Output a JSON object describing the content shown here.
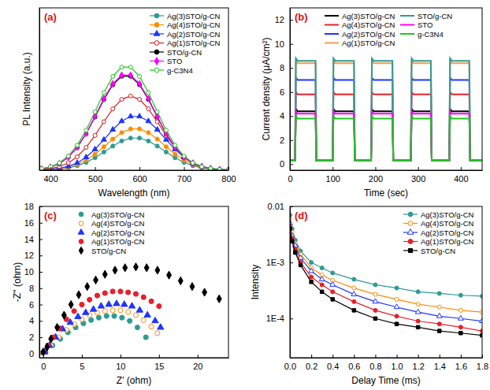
{
  "chart_data": [
    {
      "type": "line",
      "title": "(a)",
      "x_label": "Wavelength (nm)",
      "y_label": "PL Intensity (a.u.)",
      "xlim": [
        375,
        800
      ],
      "ylim": [
        0,
        140
      ],
      "xticks": [
        400,
        500,
        600,
        700,
        800
      ],
      "tick_labels": "x",
      "legend": "top-right",
      "x": [
        380,
        400,
        420,
        440,
        460,
        480,
        500,
        520,
        540,
        560,
        580,
        600,
        620,
        640,
        660,
        680,
        700,
        720,
        740,
        760,
        780,
        800
      ],
      "series": [
        {
          "name": "Ag(3)STO/g-CN",
          "color": "#2e9c94",
          "marker": "circle",
          "values": [
            0.2,
            0.4,
            0.9,
            2.0,
            3.8,
            6.7,
            10.7,
            15.7,
            20.8,
            25.2,
            27.7,
            27.7,
            25.2,
            20.8,
            15.7,
            10.7,
            6.7,
            3.8,
            2.0,
            0.9,
            0.4,
            0.2
          ]
        },
        {
          "name": "Ag(4)STO/g-CN",
          "color": "#ff8c00",
          "marker": "circle",
          "values": [
            0.2,
            0.5,
            1.2,
            2.5,
            4.9,
            8.6,
            13.8,
            20.2,
            26.8,
            32.4,
            35.6,
            35.6,
            32.4,
            26.8,
            20.2,
            13.8,
            8.6,
            4.9,
            2.5,
            1.2,
            0.5,
            0.2
          ]
        },
        {
          "name": "Ag(2)STO/g-CN",
          "color": "#1f35ff",
          "marker": "triangle",
          "values": [
            0.3,
            0.7,
            1.6,
            3.3,
            6.3,
            11.2,
            18.0,
            26.3,
            35.0,
            42.3,
            46.4,
            46.4,
            42.3,
            35.0,
            26.3,
            18.0,
            11.2,
            6.3,
            3.3,
            1.6,
            0.7,
            0.3
          ]
        },
        {
          "name": "Ag(1)STO/g-CN",
          "color": "#d42020",
          "marker": "open-circle",
          "values": [
            0.6,
            1.4,
            3.1,
            6.3,
            11.6,
            19.6,
            30.0,
            41.8,
            52.9,
            61.1,
            64.0,
            61.1,
            52.9,
            41.8,
            30.0,
            19.6,
            11.6,
            6.3,
            3.1,
            1.4,
            0.6,
            0.2
          ]
        },
        {
          "name": "STO/g-CN",
          "color": "#000000",
          "marker": "circle",
          "values": [
            1.1,
            2.7,
            5.7,
            11.1,
            19.6,
            31.4,
            45.9,
            61.0,
            73.7,
            81.0,
            81.0,
            73.7,
            61.0,
            45.9,
            31.4,
            19.6,
            11.1,
            5.7,
            2.7,
            1.1,
            0.5,
            0.2
          ]
        },
        {
          "name": "STO",
          "color": "#ff00ff",
          "marker": "diamond",
          "values": [
            1.2,
            2.7,
            5.8,
            11.2,
            19.8,
            31.8,
            46.5,
            61.8,
            74.6,
            82.0,
            82.0,
            74.6,
            61.8,
            46.5,
            31.8,
            19.8,
            11.2,
            5.8,
            2.7,
            1.2,
            0.5,
            0.2
          ]
        },
        {
          "name": "g-C3N4",
          "color": "#22c422",
          "marker": "open-circle",
          "values": [
            1.3,
            3.0,
            6.3,
            12.2,
            21.5,
            34.5,
            50.4,
            67.0,
            80.9,
            88.9,
            88.9,
            80.9,
            67.0,
            50.4,
            34.5,
            21.5,
            12.2,
            6.3,
            3.0,
            1.3,
            0.5,
            0.2
          ]
        }
      ]
    },
    {
      "type": "line",
      "title": "(b)",
      "x_label": "Time (sec)",
      "y_label": "Current density (μA/cm²)",
      "xlim": [
        0,
        450
      ],
      "ylim": [
        -0.5,
        13
      ],
      "xticks": [
        0,
        100,
        200,
        300,
        400
      ],
      "yticks": [
        0,
        2,
        4,
        6,
        8,
        10,
        12
      ],
      "legend": "top",
      "x": [
        0,
        12,
        14,
        18,
        60,
        62,
        100,
        102,
        106,
        150,
        152,
        190,
        192,
        196,
        240,
        242,
        283,
        285,
        289,
        330,
        332,
        373,
        375,
        379,
        420,
        422,
        450
      ],
      "series": [
        {
          "name": "Ag(3)STO/g-CN",
          "color": "#000000",
          "values": [
            0.3,
            0.3,
            4.6,
            4.4,
            4.4,
            0.3,
            0.3,
            4.6,
            4.4,
            4.4,
            0.3,
            0.3,
            4.6,
            4.4,
            4.4,
            0.3,
            0.3,
            4.6,
            4.4,
            4.4,
            0.3,
            0.3,
            4.6,
            4.4,
            4.4,
            0.3,
            0.3
          ]
        },
        {
          "name": "Ag(4)STO/g-CN",
          "color": "#e8202a",
          "values": [
            0.3,
            0.3,
            6.0,
            5.8,
            5.8,
            0.3,
            0.3,
            6.0,
            5.8,
            5.8,
            0.3,
            0.3,
            6.0,
            5.8,
            5.8,
            0.3,
            0.3,
            6.0,
            5.8,
            5.8,
            0.3,
            0.3,
            6.0,
            5.8,
            5.8,
            0.3,
            0.3
          ]
        },
        {
          "name": "Ag(2)STO/g-CN",
          "color": "#1f35ff",
          "values": [
            0.3,
            0.3,
            7.2,
            7.0,
            7.0,
            0.3,
            0.3,
            7.2,
            7.0,
            7.0,
            0.3,
            0.3,
            7.2,
            7.0,
            7.0,
            0.3,
            0.3,
            7.2,
            7.0,
            7.0,
            0.3,
            0.3,
            7.2,
            7.0,
            7.0,
            0.3,
            0.3
          ]
        },
        {
          "name": "Ag(1)STO/g-CN",
          "color": "#f0a050",
          "values": [
            0.3,
            0.3,
            8.6,
            8.4,
            8.4,
            0.3,
            0.3,
            8.6,
            8.4,
            8.4,
            0.3,
            0.3,
            8.6,
            8.4,
            8.4,
            0.3,
            0.3,
            8.6,
            8.4,
            8.4,
            0.3,
            0.3,
            8.6,
            8.4,
            8.4,
            0.3,
            0.3
          ]
        },
        {
          "name": "STO/g-CN",
          "color": "#2e9c94",
          "values": [
            0.3,
            0.3,
            8.8,
            8.6,
            8.6,
            0.3,
            0.3,
            8.8,
            8.6,
            8.6,
            0.3,
            0.3,
            8.8,
            8.6,
            8.6,
            0.3,
            0.3,
            8.8,
            8.6,
            8.6,
            0.3,
            0.3,
            8.8,
            8.6,
            8.6,
            0.3,
            0.3
          ]
        },
        {
          "name": "STO",
          "color": "#ff00ff",
          "values": [
            0.3,
            0.3,
            4.4,
            4.2,
            4.2,
            0.3,
            0.3,
            4.4,
            4.2,
            4.2,
            0.3,
            0.3,
            4.4,
            4.2,
            4.2,
            0.3,
            0.3,
            4.4,
            4.2,
            4.2,
            0.3,
            0.3,
            4.4,
            4.2,
            4.2,
            0.3,
            0.3
          ]
        },
        {
          "name": "g-C3N4",
          "color": "#22c422",
          "values": [
            0.3,
            0.3,
            4.0,
            3.8,
            3.8,
            0.3,
            0.3,
            4.0,
            3.8,
            3.8,
            0.3,
            0.3,
            4.0,
            3.8,
            3.8,
            0.3,
            0.3,
            4.0,
            3.8,
            3.8,
            0.3,
            0.3,
            4.0,
            3.8,
            3.8,
            0.3,
            0.3
          ]
        }
      ]
    },
    {
      "type": "scatter",
      "title": "(c)",
      "x_label": "Z' (ohm)",
      "y_label": "-Z'' (ohm)",
      "xlim": [
        -0.5,
        24
      ],
      "ylim": [
        -0.5,
        18
      ],
      "xticks": [
        0,
        5,
        10,
        15,
        20
      ],
      "yticks": [
        0,
        2,
        4,
        6,
        8,
        10,
        12,
        14,
        16,
        18
      ],
      "legend": "top-left",
      "series": [
        {
          "name": "Ag(3)STO/g-CN",
          "color": "#2e9c94",
          "marker": "circle",
          "x": [
            0.3,
            1.2,
            2.2,
            3.2,
            4.2,
            5.2,
            6.2,
            7.2,
            8.2,
            9.2,
            10.2,
            11.2,
            12.2,
            13.3
          ],
          "values": [
            0.2,
            1,
            1.8,
            2.6,
            3.2,
            3.7,
            4.1,
            4.4,
            4.6,
            4.6,
            4.4,
            4,
            3.2,
            2
          ]
        },
        {
          "name": "Ag(4)STO/g-CN",
          "color": "#ff8c00",
          "marker": "open-circle",
          "x": [
            0.2,
            1,
            2,
            3,
            4,
            5,
            6,
            7,
            8,
            9,
            10,
            11,
            12,
            13,
            14,
            14.8
          ],
          "values": [
            0.2,
            1,
            2,
            2.9,
            3.6,
            4.2,
            4.7,
            5,
            5.2,
            5.3,
            5.3,
            5.1,
            4.7,
            4.1,
            3.3,
            2.5
          ]
        },
        {
          "name": "Ag(2)STO/g-CN",
          "color": "#1f35ff",
          "marker": "triangle",
          "x": [
            0.2,
            0.8,
            1.6,
            2.5,
            3.5,
            4.5,
            5.5,
            6.5,
            7.5,
            8.5,
            9.5,
            10.5,
            11.5,
            12.5,
            13.5,
            14.5,
            15.2
          ],
          "values": [
            0.2,
            1,
            2,
            3,
            3.8,
            4.5,
            5,
            5.4,
            5.8,
            6,
            6.1,
            6,
            5.8,
            5.3,
            4.7,
            4,
            3.2
          ]
        },
        {
          "name": "Ag(1)STO/g-CN",
          "color": "#e8202a",
          "marker": "circle",
          "x": [
            0,
            0.6,
            1.3,
            2.1,
            3,
            4,
            5,
            6,
            7,
            8,
            9,
            10,
            11,
            12,
            13,
            14,
            15
          ],
          "values": [
            0.2,
            1,
            2,
            3.1,
            4.2,
            5.2,
            6,
            6.6,
            7.1,
            7.4,
            7.6,
            7.6,
            7.5,
            7.3,
            6.9,
            6.4,
            5.8
          ]
        },
        {
          "name": "STO/g-CN",
          "color": "#000000",
          "marker": "diamond",
          "x": [
            0,
            0.5,
            1,
            1.8,
            2.7,
            3.6,
            4.6,
            5.7,
            6.8,
            8,
            9.3,
            10.6,
            12,
            13.4,
            14.8,
            16.3,
            17.8,
            19.3,
            20.9,
            22.8
          ],
          "values": [
            0.2,
            0.8,
            1.8,
            3.2,
            4.7,
            6,
            7.2,
            8.2,
            9,
            9.7,
            10.2,
            10.5,
            10.6,
            10.5,
            10.2,
            9.6,
            8.9,
            8.2,
            7.5,
            6.7
          ]
        }
      ]
    },
    {
      "type": "line",
      "title": "(d)",
      "x_label": "Delay Time (ms)",
      "y_label": "Intensity",
      "log": "y",
      "xlim": [
        0,
        1.8
      ],
      "ylim": [
        2e-05,
        0.01
      ],
      "xticks": [
        {
          "value": 0,
          "label": "0.0"
        },
        0.2,
        0.4,
        0.6,
        0.8,
        {
          "value": 1,
          "label": "1.0"
        },
        1.2,
        1.4,
        1.6,
        1.8
      ],
      "yticks": [
        {
          "value": 0.0001,
          "label": "1E-4"
        },
        {
          "value": 0.001,
          "label": "1E-3"
        },
        0.01
      ],
      "legend": "top-right",
      "x": [
        0,
        0.02,
        0.05,
        0.1,
        0.2,
        0.3,
        0.4,
        0.6,
        0.8,
        1.0,
        1.2,
        1.4,
        1.6,
        1.8
      ],
      "series": [
        {
          "name": "Ag(3)STO/g-CN",
          "color": "#2e9c94",
          "marker": "circle",
          "values": [
            0.007,
            0.004,
            0.0025,
            0.0016,
            0.001,
            0.0008,
            0.00065,
            0.0005,
            0.0004,
            0.00035,
            0.0003,
            0.00028,
            0.00026,
            0.00025
          ]
        },
        {
          "name": "Ag(4)STO/g-CN",
          "color": "#ff8c00",
          "marker": "open-circle",
          "values": [
            0.006,
            0.0035,
            0.0022,
            0.0014,
            0.0008,
            0.0006,
            0.00048,
            0.00035,
            0.00027,
            0.00022,
            0.00018,
            0.00016,
            0.00014,
            0.00013
          ]
        },
        {
          "name": "Ag(2)STO/g-CN",
          "color": "#1f35ff",
          "marker": "open-triangle",
          "values": [
            0.005,
            0.003,
            0.002,
            0.0012,
            0.0007,
            0.0005,
            0.0004,
            0.00027,
            0.0002,
            0.00016,
            0.00013,
            0.00011,
            0.0001,
            9e-05
          ]
        },
        {
          "name": "Ag(1)STO/g-CN",
          "color": "#e8202a",
          "marker": "circle",
          "values": [
            0.0045,
            0.0027,
            0.0017,
            0.001,
            0.00055,
            0.0004,
            0.0003,
            0.0002,
            0.00014,
            0.00011,
            9e-05,
            8e-05,
            7e-05,
            6e-05
          ]
        },
        {
          "name": "STO/g-CN",
          "color": "#000000",
          "marker": "square",
          "values": [
            0.004,
            0.0024,
            0.0015,
            0.0009,
            0.00045,
            0.0003,
            0.00022,
            0.00014,
            0.0001,
            8e-05,
            7e-05,
            6e-05,
            5.5e-05,
            5e-05
          ]
        }
      ]
    }
  ]
}
